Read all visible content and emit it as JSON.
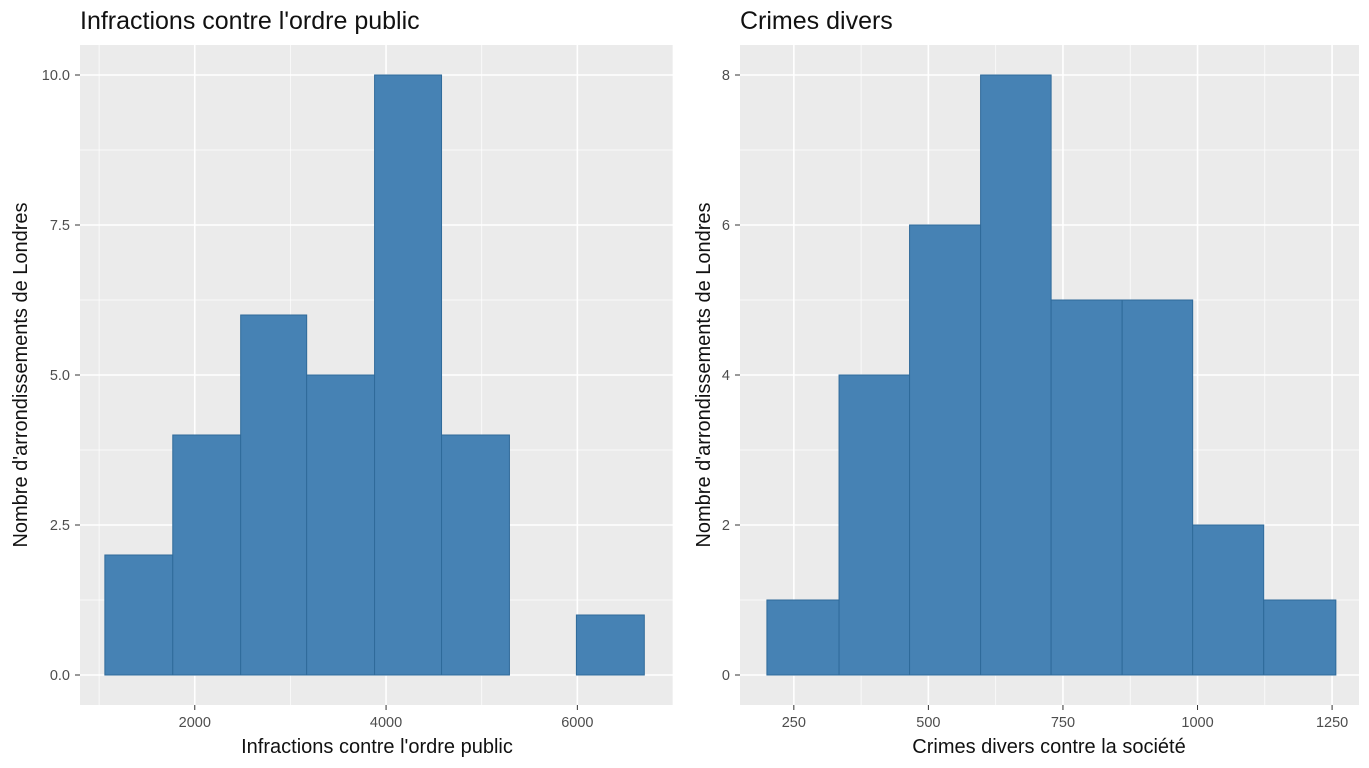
{
  "bar_fill": "#4682B4",
  "bar_stroke": "#2F6A9A",
  "chart_data": [
    {
      "type": "histogram",
      "title": "Infractions contre l'ordre public",
      "xlabel": "Infractions contre l'ordre public",
      "ylabel": "Nombre d'arrondissements de Londres",
      "xlim": [
        800,
        7000
      ],
      "ylim": [
        -0.5,
        10.5
      ],
      "x_ticks": [
        2000,
        4000,
        6000
      ],
      "x_tick_labels": [
        "2000",
        "4000",
        "6000"
      ],
      "x_minor": [
        1000,
        3000,
        5000,
        7000
      ],
      "y_ticks": [
        0,
        2.5,
        5,
        7.5,
        10
      ],
      "y_tick_labels": [
        "0.0",
        "2.5",
        "5.0",
        "7.5",
        "10.0"
      ],
      "y_minor": [
        1.25,
        3.75,
        6.25,
        8.75
      ],
      "bins": [
        {
          "x0": 1060,
          "x1": 1770,
          "count": 2
        },
        {
          "x0": 1770,
          "x1": 2480,
          "count": 4
        },
        {
          "x0": 2480,
          "x1": 3170,
          "count": 6
        },
        {
          "x0": 3170,
          "x1": 3880,
          "count": 5
        },
        {
          "x0": 3880,
          "x1": 4580,
          "count": 10
        },
        {
          "x0": 4580,
          "x1": 5290,
          "count": 4
        },
        {
          "x0": 5290,
          "x1": 5990,
          "count": 0
        },
        {
          "x0": 5990,
          "x1": 6700,
          "count": 1
        }
      ]
    },
    {
      "type": "histogram",
      "title": "Crimes divers",
      "xlabel": "Crimes divers contre la société",
      "ylabel": "Nombre d'arrondissements de Londres",
      "xlim": [
        150,
        1300
      ],
      "ylim": [
        -0.4,
        8.4
      ],
      "x_ticks": [
        250,
        500,
        750,
        1000,
        1250
      ],
      "x_tick_labels": [
        "250",
        "500",
        "750",
        "1000",
        "1250"
      ],
      "x_minor": [
        375,
        625,
        875,
        1125
      ],
      "y_ticks": [
        0,
        2,
        4,
        6,
        8
      ],
      "y_tick_labels": [
        "0",
        "2",
        "4",
        "6",
        "8"
      ],
      "y_minor": [
        1,
        3,
        5,
        7
      ],
      "bins": [
        {
          "x0": 200,
          "x1": 334,
          "count": 1
        },
        {
          "x0": 334,
          "x1": 465,
          "count": 4
        },
        {
          "x0": 465,
          "x1": 597,
          "count": 6
        },
        {
          "x0": 597,
          "x1": 728,
          "count": 8
        },
        {
          "x0": 728,
          "x1": 860,
          "count": 5
        },
        {
          "x0": 860,
          "x1": 991,
          "count": 5
        },
        {
          "x0": 991,
          "x1": 1123,
          "count": 2
        },
        {
          "x0": 1123,
          "x1": 1257,
          "count": 1
        }
      ]
    }
  ]
}
